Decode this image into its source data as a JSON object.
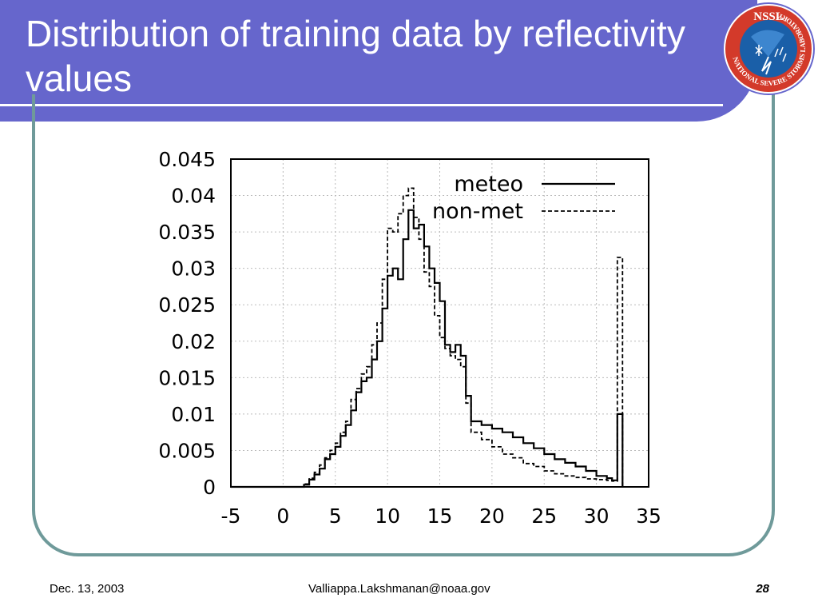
{
  "slide": {
    "title": "Distribution of training data by reflectivity values",
    "logo": {
      "icon": "nssl-logo-icon",
      "top_text": "NSSL",
      "ring_text": "NATIONAL SEVERE STORMS LABORATORY",
      "ring_color": "#d33a2a",
      "inner_color": "#1a5fa8"
    },
    "footer": {
      "date": "Dec. 13, 2003",
      "email": "Valliappa.Lakshmanan@noaa.gov",
      "page": "28"
    },
    "colors": {
      "title_bar": "#6666cc",
      "frame": "#6f9a9a"
    }
  },
  "chart_data": {
    "type": "line",
    "xlim": [
      -5,
      35
    ],
    "ylim": [
      0,
      0.045
    ],
    "x_ticks": [
      "-5",
      "0",
      "5",
      "10",
      "15",
      "20",
      "25",
      "30",
      "35"
    ],
    "y_ticks": [
      "0",
      "0.005",
      "0.01",
      "0.015",
      "0.02",
      "0.025",
      "0.03",
      "0.035",
      "0.04",
      "0.045"
    ],
    "grid": true,
    "legend_position": "top-right",
    "series": [
      {
        "name": "meteo",
        "line_style": "solid",
        "x": [
          -5,
          1.5,
          2,
          2.5,
          3,
          3.5,
          4,
          4.5,
          5,
          5.5,
          6,
          6.5,
          7,
          7.5,
          8,
          8.5,
          9,
          9.5,
          10,
          10.5,
          11,
          11.5,
          12,
          12.5,
          13,
          13.5,
          14,
          14.5,
          15,
          15.5,
          16,
          16.5,
          17,
          17.5,
          18,
          19,
          20,
          21,
          22,
          23,
          24,
          25,
          26,
          27,
          28,
          29,
          30,
          31,
          31.5,
          32,
          32.5
        ],
        "y": [
          0,
          0,
          0.0003,
          0.001,
          0.0017,
          0.0025,
          0.0038,
          0.0045,
          0.0055,
          0.007,
          0.0085,
          0.0105,
          0.013,
          0.0145,
          0.015,
          0.0175,
          0.02,
          0.0245,
          0.029,
          0.03,
          0.0285,
          0.034,
          0.038,
          0.0355,
          0.036,
          0.033,
          0.03,
          0.028,
          0.0255,
          0.0195,
          0.0185,
          0.0195,
          0.018,
          0.0125,
          0.009,
          0.0085,
          0.008,
          0.0075,
          0.0068,
          0.006,
          0.0053,
          0.0045,
          0.0038,
          0.0033,
          0.0028,
          0.0022,
          0.0015,
          0.0012,
          0.0009,
          0.01,
          0
        ]
      },
      {
        "name": "non-met",
        "line_style": "dashed",
        "x": [
          -5,
          1.5,
          2,
          2.5,
          3,
          3.5,
          4,
          4.5,
          5,
          5.5,
          6,
          6.5,
          7,
          7.5,
          8,
          8.5,
          9,
          9.5,
          10,
          10.5,
          11,
          11.5,
          12,
          12.5,
          13,
          13.5,
          14,
          14.5,
          15,
          15.5,
          16,
          16.5,
          17,
          17.5,
          18,
          19,
          20,
          21,
          22,
          23,
          24,
          25,
          26,
          27,
          28,
          29,
          30,
          31,
          31.5,
          32,
          32.5
        ],
        "y": [
          0,
          0,
          0.0004,
          0.0012,
          0.002,
          0.003,
          0.004,
          0.005,
          0.006,
          0.0075,
          0.009,
          0.012,
          0.0135,
          0.0155,
          0.0165,
          0.0195,
          0.0225,
          0.0285,
          0.0355,
          0.035,
          0.0375,
          0.04,
          0.041,
          0.037,
          0.034,
          0.0295,
          0.0275,
          0.0235,
          0.0205,
          0.019,
          0.018,
          0.0175,
          0.0165,
          0.0115,
          0.0075,
          0.0065,
          0.0055,
          0.0045,
          0.004,
          0.0032,
          0.0028,
          0.0022,
          0.0018,
          0.0015,
          0.0013,
          0.0011,
          0.001,
          0.0009,
          0.0008,
          0.0315,
          0
        ]
      }
    ]
  }
}
